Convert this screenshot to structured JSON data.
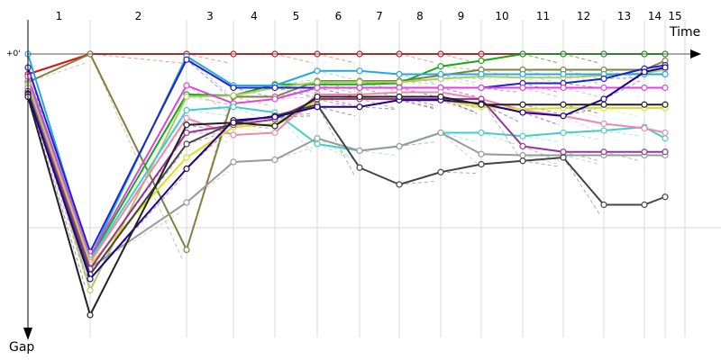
{
  "chart_data": {
    "type": "line",
    "x_axis_label": "Time",
    "y_axis_label": "Gap",
    "y_zero_label": "+0'",
    "laps": [
      "1",
      "2",
      "3",
      "4",
      "5",
      "6",
      "7",
      "8",
      "9",
      "10",
      "11",
      "12",
      "13",
      "14",
      "15"
    ],
    "lap_times": [
      1,
      2,
      3,
      4,
      5,
      6,
      7,
      8,
      9,
      10,
      11,
      12,
      13,
      14,
      15
    ],
    "series": [
      {
        "color": "#dd1111",
        "values": [
          18,
          0,
          0,
          0,
          0,
          0,
          0,
          0,
          0,
          0,
          0,
          0,
          0,
          0,
          0
        ]
      },
      {
        "color": "#808040",
        "values": [
          25,
          0,
          174,
          38,
          38,
          24,
          24,
          24,
          19,
          14,
          14,
          14,
          14,
          14,
          6
        ]
      },
      {
        "color": "#11aa11",
        "values": [
          24,
          182,
          36,
          37,
          27,
          27,
          27,
          26,
          11,
          6,
          0,
          0,
          0,
          0,
          0
        ]
      },
      {
        "color": "#aacc66",
        "values": [
          22,
          210,
          38,
          37,
          30,
          25,
          25,
          25,
          22,
          20,
          21,
          21,
          19,
          17,
          14
        ]
      },
      {
        "color": "#22aadd",
        "values": [
          0,
          181,
          2,
          28,
          28,
          15,
          15,
          18,
          18,
          18,
          18,
          18,
          18,
          18,
          18
        ]
      },
      {
        "color": "#2222cc",
        "values": [
          12,
          176,
          5,
          30,
          30,
          30,
          30,
          30,
          30,
          30,
          26,
          26,
          22,
          13,
          10
        ]
      },
      {
        "color": "#dd44dd",
        "values": [
          20,
          180,
          28,
          44,
          40,
          30,
          30,
          30,
          30,
          30,
          30,
          30,
          30,
          30,
          30
        ]
      },
      {
        "color": "#44cccc",
        "values": [
          26,
          183,
          50,
          47,
          52,
          80,
          86,
          82,
          70,
          70,
          73,
          70,
          68,
          65,
          75
        ]
      },
      {
        "color": "#ee88aa",
        "values": [
          27,
          185,
          57,
          72,
          70,
          36,
          36,
          34,
          34,
          40,
          50,
          55,
          62,
          66,
          70
        ]
      },
      {
        "color": "#dddd22",
        "values": [
          28,
          187,
          92,
          65,
          62,
          41,
          39,
          41,
          41,
          47,
          49,
          48,
          48,
          48,
          48
        ]
      },
      {
        "color": "#999999",
        "values": [
          30,
          190,
          132,
          96,
          94,
          75,
          86,
          82,
          70,
          89,
          90,
          90,
          90,
          90,
          90
        ]
      },
      {
        "color": "#993399",
        "values": [
          33,
          191,
          70,
          63,
          58,
          40,
          40,
          40,
          40,
          40,
          82,
          87,
          87,
          87,
          87
        ]
      },
      {
        "color": "#444444",
        "values": [
          35,
          196,
          80,
          61,
          55,
          45,
          101,
          116,
          105,
          98,
          95,
          92,
          134,
          134,
          127
        ]
      },
      {
        "color": "#220088",
        "values": [
          36,
          200,
          102,
          59,
          56,
          47,
          47,
          41,
          41,
          44,
          52,
          55,
          40,
          16,
          12
        ]
      },
      {
        "color": "#222222",
        "values": [
          38,
          232,
          63,
          61,
          64,
          38,
          38,
          38,
          38,
          45,
          45,
          45,
          45,
          45,
          45
        ]
      }
    ]
  }
}
